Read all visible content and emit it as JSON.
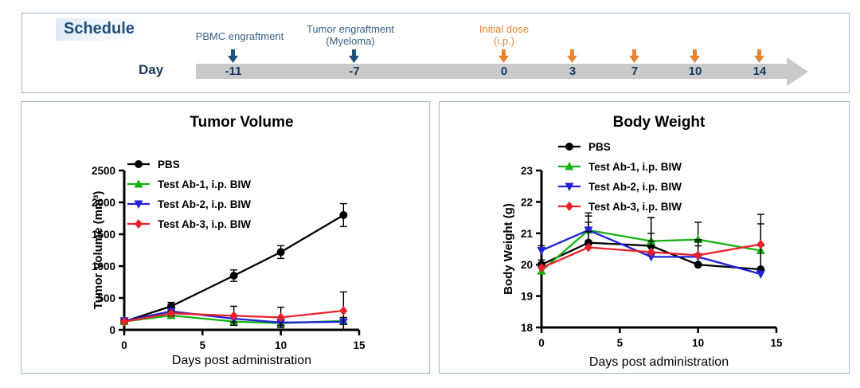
{
  "panel_border_color": "#9FB6CB",
  "schedule": {
    "title": "Schedule",
    "day_label": "Day",
    "theme_colors": {
      "navy_arrow": "#1F4E79",
      "orange_arrow": "#E8832F",
      "navy_text": "#3A6186",
      "orange_text": "#E8832F",
      "day_number_text": "#17375E",
      "bar_gray": "#CACACA"
    },
    "annotations": [
      {
        "lines": [
          "PBMC engraftment"
        ],
        "theme": "navy",
        "day": "-11"
      },
      {
        "lines": [
          "Tumor engraftment",
          "(Myeloma)"
        ],
        "theme": "navy",
        "day": "-7"
      },
      {
        "lines": [
          "Initial dose",
          "(i.p.)"
        ],
        "theme": "orange",
        "day": "0"
      }
    ],
    "timeline_days": [
      {
        "day": "-11",
        "arrow": "navy"
      },
      {
        "day": "-7",
        "arrow": "navy"
      },
      {
        "day": "0",
        "arrow": "orange"
      },
      {
        "day": "3",
        "arrow": "orange"
      },
      {
        "day": "7",
        "arrow": "orange"
      },
      {
        "day": "10",
        "arrow": "orange"
      },
      {
        "day": "14",
        "arrow": "orange"
      }
    ]
  },
  "chart_data": [
    {
      "type": "line",
      "title": "Tumor Volume",
      "xlabel": "Days post administration",
      "ylabel": "Tumor Volume (mm³)",
      "x": [
        0,
        3,
        7,
        10,
        14
      ],
      "xlim": [
        0,
        15
      ],
      "xticks": [
        0,
        5,
        10,
        15
      ],
      "ylim": [
        0,
        2500
      ],
      "yticks": [
        0,
        500,
        1000,
        1500,
        2000,
        2500
      ],
      "grid": false,
      "legend_position": "top-left-inside",
      "error_direction": "both",
      "series": [
        {
          "name": "PBS",
          "color": "#000000",
          "marker": "circle",
          "values": [
            130,
            370,
            850,
            1220,
            1800
          ],
          "errors": [
            30,
            60,
            90,
            100,
            180
          ]
        },
        {
          "name": "Test Ab-1, i.p. BIW",
          "color": "#15B115",
          "marker": "triangle-up",
          "values": [
            130,
            225,
            130,
            105,
            140
          ],
          "errors": [
            25,
            30,
            45,
            35,
            55
          ]
        },
        {
          "name": "Test Ab-2, i.p. BIW",
          "color": "#2121D6",
          "marker": "triangle-down",
          "values": [
            140,
            290,
            175,
            115,
            125
          ],
          "errors": [
            25,
            35,
            55,
            45,
            40
          ]
        },
        {
          "name": "Test Ab-3, i.p. BIW",
          "color": "#E8222A",
          "marker": "diamond",
          "values": [
            130,
            260,
            220,
            195,
            300
          ],
          "errors": [
            25,
            40,
            150,
            160,
            295
          ]
        }
      ]
    },
    {
      "type": "line",
      "title": "Body Weight",
      "xlabel": "Days post administration",
      "ylabel": "Body Weight (g)",
      "x": [
        0,
        3,
        7,
        10,
        14
      ],
      "xlim": [
        0,
        15
      ],
      "xticks": [
        0,
        5,
        10,
        15
      ],
      "ylim": [
        18,
        23
      ],
      "yticks": [
        18,
        19,
        20,
        21,
        22,
        23
      ],
      "grid": false,
      "legend_position": "top-left-above",
      "error_direction": "up",
      "series": [
        {
          "name": "PBS",
          "color": "#000000",
          "marker": "circle",
          "values": [
            20.0,
            20.7,
            20.6,
            20.0,
            19.85
          ],
          "errors": [
            0.15,
            0.65,
            0.9,
            0.6,
            0.8
          ]
        },
        {
          "name": "Test Ab-1, i.p. BIW",
          "color": "#15B115",
          "marker": "triangle-up",
          "values": [
            19.8,
            21.1,
            20.75,
            20.8,
            20.45
          ],
          "errors": [
            0.15,
            0.55,
            0.75,
            0.55,
            1.15
          ]
        },
        {
          "name": "Test Ab-2, i.p. BIW",
          "color": "#2121D6",
          "marker": "triangle-down",
          "values": [
            20.45,
            21.1,
            20.25,
            20.25,
            19.7
          ],
          "errors": [
            0.15,
            0.45,
            0.5,
            0.5,
            0.9
          ]
        },
        {
          "name": "Test Ab-3, i.p. BIW",
          "color": "#E8222A",
          "marker": "diamond",
          "values": [
            19.9,
            20.55,
            20.4,
            20.3,
            20.65
          ],
          "errors": [
            0.15,
            0.5,
            0.6,
            0.5,
            0.65
          ]
        }
      ]
    }
  ]
}
